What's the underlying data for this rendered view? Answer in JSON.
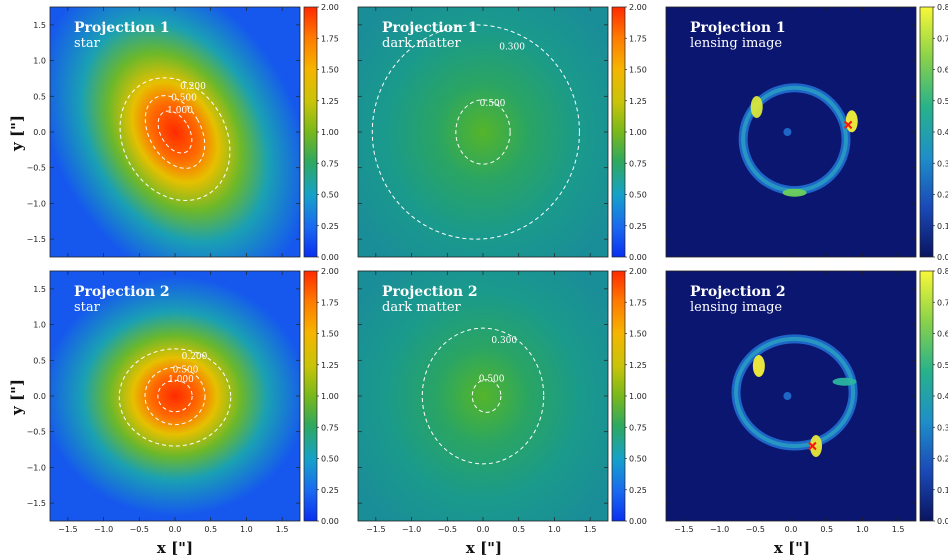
{
  "axes": {
    "xlabel": "x [\"]",
    "ylabel": "y [\"]",
    "xlim": [
      -1.75,
      1.75
    ],
    "ylim": [
      -1.75,
      1.75
    ],
    "xticks": [
      "-1.5",
      "-1.0",
      "-0.5",
      "0.0",
      "0.5",
      "1.0",
      "1.5"
    ],
    "yticks": [
      "1.5",
      "1.0",
      "0.5",
      "0.0",
      "-0.5",
      "-1.0",
      "-1.5"
    ]
  },
  "colorbars": {
    "density": {
      "range": [
        0,
        2
      ],
      "ticks": [
        "2.00",
        "1.75",
        "1.50",
        "1.25",
        "1.00",
        "0.75",
        "0.50",
        "0.25",
        "0.00"
      ]
    },
    "lensing": {
      "range": [
        0,
        0.8
      ],
      "ticks": [
        "0.8",
        "0.7",
        "0.6",
        "0.5",
        "0.4",
        "0.3",
        "0.2",
        "0.1",
        "0.0"
      ]
    }
  },
  "chart_data": [
    {
      "type": "heatmap",
      "row": 0,
      "col": 0,
      "title": "Projection 1",
      "subtitle": "star",
      "colorbar": "density",
      "contours": [
        {
          "level": 0.2,
          "label": "0.200",
          "cx": 0.0,
          "cy": -0.1,
          "rx": 0.72,
          "ry": 0.9,
          "angle": -30
        },
        {
          "level": 0.5,
          "label": "0.500",
          "cx": 0.0,
          "cy": 0.0,
          "rx": 0.36,
          "ry": 0.55,
          "angle": -30
        },
        {
          "level": 1.0,
          "label": "1.000",
          "cx": 0.0,
          "cy": 0.0,
          "rx": 0.2,
          "ry": 0.32,
          "angle": -30
        }
      ]
    },
    {
      "type": "heatmap",
      "row": 0,
      "col": 1,
      "title": "Projection 1",
      "subtitle": "dark matter",
      "colorbar": "density",
      "contours": [
        {
          "level": 0.3,
          "label": "0.300",
          "cx": -0.1,
          "cy": 0.0,
          "rx": 1.45,
          "ry": 1.5,
          "angle": 0
        },
        {
          "level": 0.5,
          "label": "0.500",
          "cx": 0.0,
          "cy": 0.0,
          "rx": 0.38,
          "ry": 0.45,
          "angle": 0
        }
      ]
    },
    {
      "type": "heatmap",
      "row": 0,
      "col": 2,
      "title": "Projection 1",
      "subtitle": "lensing image",
      "colorbar": "lensing",
      "source": {
        "x": 0.8,
        "y": 0.1
      },
      "ring": {
        "cx": 0.05,
        "cy": -0.1,
        "rx": 0.72,
        "ry": 0.72
      }
    },
    {
      "type": "heatmap",
      "row": 1,
      "col": 0,
      "title": "Projection 2",
      "subtitle": "star",
      "colorbar": "density",
      "contours": [
        {
          "level": 0.2,
          "label": "0.200",
          "cx": 0.0,
          "cy": -0.02,
          "rx": 0.78,
          "ry": 0.68,
          "angle": 0
        },
        {
          "level": 0.5,
          "label": "0.500",
          "cx": 0.0,
          "cy": 0.0,
          "rx": 0.42,
          "ry": 0.4,
          "angle": 0
        },
        {
          "level": 1.0,
          "label": "1.000",
          "cx": 0.0,
          "cy": 0.0,
          "rx": 0.24,
          "ry": 0.22,
          "angle": 0
        }
      ]
    },
    {
      "type": "heatmap",
      "row": 1,
      "col": 1,
      "title": "Projection 2",
      "subtitle": "dark matter",
      "colorbar": "density",
      "contours": [
        {
          "level": 0.3,
          "label": "0.300",
          "cx": 0.0,
          "cy": 0.0,
          "rx": 0.85,
          "ry": 0.95,
          "angle": 0
        },
        {
          "level": 0.5,
          "label": "0.500",
          "cx": 0.05,
          "cy": 0.0,
          "rx": 0.2,
          "ry": 0.23,
          "angle": 0
        }
      ]
    },
    {
      "type": "heatmap",
      "row": 1,
      "col": 2,
      "title": "Projection 2",
      "subtitle": "lensing image",
      "colorbar": "lensing",
      "source": {
        "x": 0.3,
        "y": -0.7
      },
      "ring": {
        "cx": 0.05,
        "cy": 0.05,
        "rx": 0.82,
        "ry": 0.75
      }
    }
  ]
}
